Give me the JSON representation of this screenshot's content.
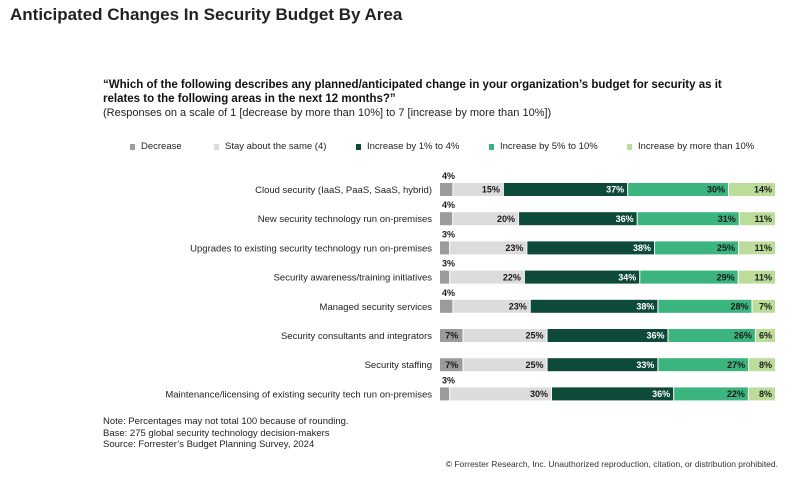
{
  "page": {
    "title": "Anticipated Changes In Security Budget By Area",
    "question": "“Which of the following describes any planned/anticipated change in your organization’s budget for security as it relates to the following areas in the next 12 months?”",
    "scale_note": "(Responses on a scale of 1 [decrease by more than 10%] to 7 [increase by more than 10%])",
    "notes": [
      "Note: Percentages may not total 100 because of rounding.",
      "Base: 275 global security technology decision-makers",
      "Source: Forrester’s Budget Planning Survey, 2024"
    ],
    "copyright": "© Forrester Research, Inc. Unauthorized reproduction, citation, or distribution prohibited."
  },
  "colors": {
    "decrease": "#9b9b9b",
    "same": "#dcdcdc",
    "inc_1_4": "#0d4a3a",
    "inc_5_10": "#3bb47e",
    "inc_more_10": "#bcdd9a"
  },
  "chart_data": {
    "type": "bar",
    "orientation": "horizontal",
    "stacked": true,
    "unit": "%",
    "legend_position": "top",
    "categories": [
      "Cloud security (IaaS, PaaS, SaaS, hybrid)",
      "New security technology run on-premises",
      "Upgrades to existing security technology run on-premises",
      "Security awareness/training initiatives",
      "Managed security services",
      "Security consultants and integrators",
      "Security staffing",
      "Maintenance/licensing of existing security tech run on-premises"
    ],
    "series": [
      {
        "name": "Decrease",
        "color_key": "decrease",
        "values": [
          4,
          4,
          3,
          3,
          4,
          7,
          7,
          3
        ]
      },
      {
        "name": "Stay about the same (4)",
        "color_key": "same",
        "values": [
          15,
          20,
          23,
          22,
          23,
          25,
          25,
          30
        ]
      },
      {
        "name": "Increase by 1% to 4%",
        "color_key": "inc_1_4",
        "values": [
          37,
          36,
          38,
          34,
          38,
          36,
          33,
          36
        ]
      },
      {
        "name": "Increase by 5% to 10%",
        "color_key": "inc_5_10",
        "values": [
          30,
          31,
          25,
          29,
          28,
          26,
          27,
          22
        ]
      },
      {
        "name": "Increase by more than 10%",
        "color_key": "inc_more_10",
        "values": [
          14,
          11,
          11,
          11,
          7,
          6,
          8,
          8
        ]
      }
    ]
  }
}
